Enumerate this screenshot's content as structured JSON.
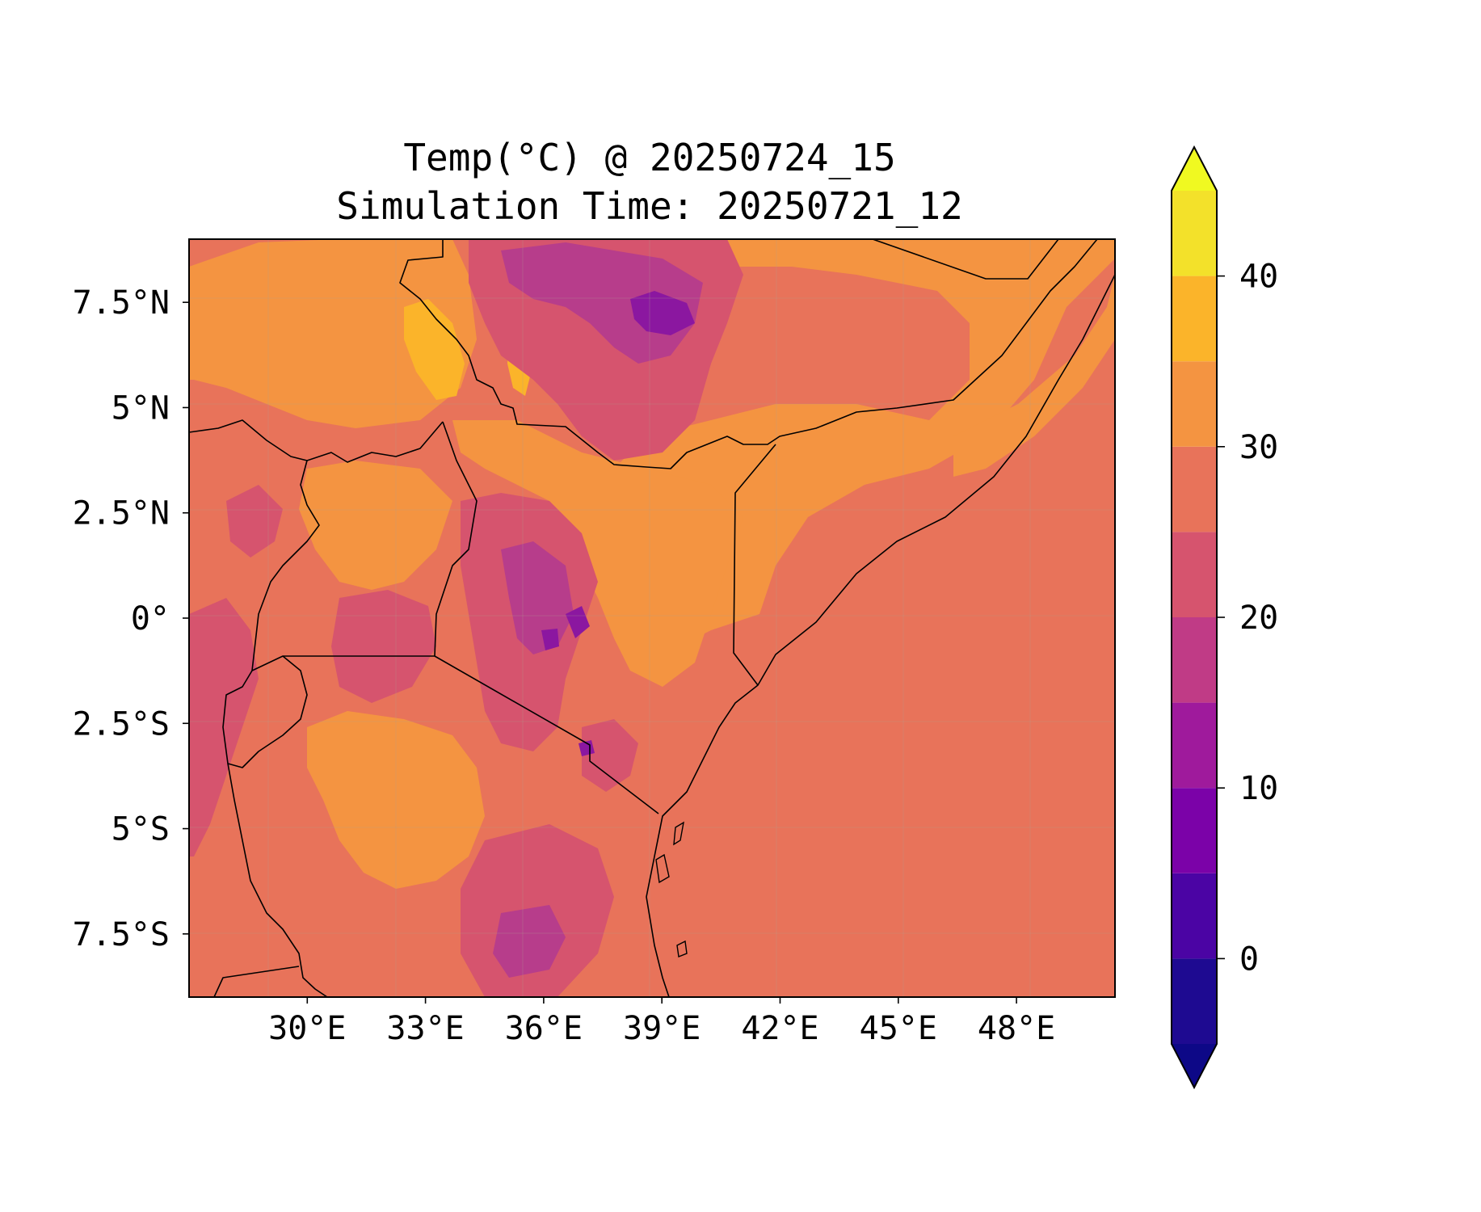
{
  "title": "Temp(°C) @ 20250724_15",
  "subtitle": "Simulation Time: 20250721_12",
  "map": {
    "lon_range": [
      27.0,
      50.5
    ],
    "lat_range": [
      -9.0,
      9.0
    ],
    "lon_ticks": [
      30,
      33,
      36,
      39,
      42,
      45,
      48
    ],
    "lat_ticks": [
      7.5,
      5,
      2.5,
      0,
      -2.5,
      -5,
      -7.5
    ],
    "lon_tick_labels": [
      "30°E",
      "33°E",
      "36°E",
      "39°E",
      "42°E",
      "45°E",
      "48°E"
    ],
    "lat_tick_labels": [
      "7.5°N",
      "5°N",
      "2.5°N",
      "0°",
      "2.5°S",
      "5°S",
      "7.5°S"
    ],
    "field_colors": {
      "ocean_lowland": "#e8735a",
      "warm": "#f49441",
      "hot": "#fbb42a",
      "highland": "#d6546e",
      "cool": "#b73d8b",
      "cold": "#8b17a0"
    },
    "border_color": "#000000"
  },
  "colorbar": {
    "levels": [
      -5,
      0,
      5,
      10,
      15,
      20,
      25,
      30,
      35,
      40,
      45
    ],
    "colors": [
      "#1e0a91",
      "#4b04a4",
      "#7b02a8",
      "#9f1a9c",
      "#c03b86",
      "#d6546e",
      "#e8735a",
      "#f49441",
      "#fbb42a",
      "#f3e12a"
    ],
    "under_color": "#0d0887",
    "over_color": "#f0f921",
    "tick_values": [
      0,
      10,
      20,
      30,
      40
    ],
    "tick_labels": [
      "0",
      "10",
      "20",
      "30",
      "40"
    ],
    "extend": "both"
  }
}
